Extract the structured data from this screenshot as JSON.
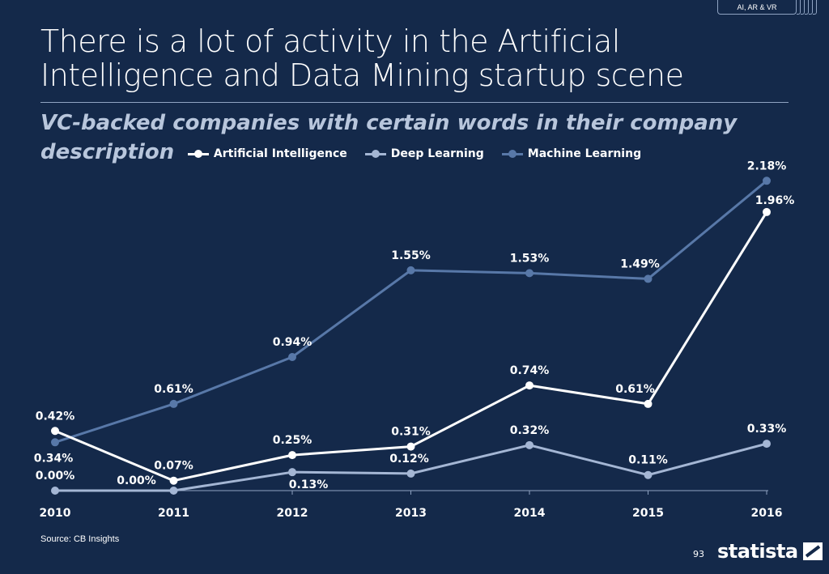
{
  "header": {
    "tag": "AI, AR & VR",
    "title": "There is a lot of activity in the Artificial Intelligence and Data Mining startup scene",
    "subtitle": "VC-backed companies with certain words in their company description"
  },
  "footer": {
    "source": "Source: CB Insights",
    "page_number": "93",
    "brand": "statista"
  },
  "colors": {
    "background": "#14294a",
    "artificial_intelligence": "#ffffff",
    "deep_learning": "#a4b6d4",
    "machine_learning": "#5878a8"
  },
  "chart_data": {
    "type": "line",
    "title": "",
    "xlabel": "",
    "ylabel": "",
    "ylim": [
      0,
      2.25
    ],
    "categories": [
      "2010",
      "2011",
      "2012",
      "2013",
      "2014",
      "2015",
      "2016"
    ],
    "legend_position": "top-center",
    "grid": false,
    "series": [
      {
        "key": "ai",
        "name": "Artificial Intelligence",
        "values": [
          0.42,
          0.07,
          0.25,
          0.31,
          0.74,
          0.61,
          1.96
        ],
        "labels": [
          "0.42%",
          "0.07%",
          "0.25%",
          "0.31%",
          "0.74%",
          "0.61%",
          "1.96%"
        ],
        "color": "#ffffff"
      },
      {
        "key": "dl",
        "name": "Deep Learning",
        "values": [
          0.0,
          0.0,
          0.13,
          0.12,
          0.32,
          0.11,
          0.33
        ],
        "labels": [
          "0.00%",
          "0.00%",
          "0.13%",
          "0.12%",
          "0.32%",
          "0.11%",
          "0.33%"
        ],
        "color": "#a4b6d4"
      },
      {
        "key": "ml",
        "name": "Machine Learning",
        "values": [
          0.34,
          0.61,
          0.94,
          1.55,
          1.53,
          1.49,
          2.18
        ],
        "labels": [
          "0.34%",
          "0.61%",
          "0.94%",
          "1.55%",
          "1.53%",
          "1.49%",
          "2.18%"
        ],
        "color": "#5878a8"
      }
    ]
  }
}
